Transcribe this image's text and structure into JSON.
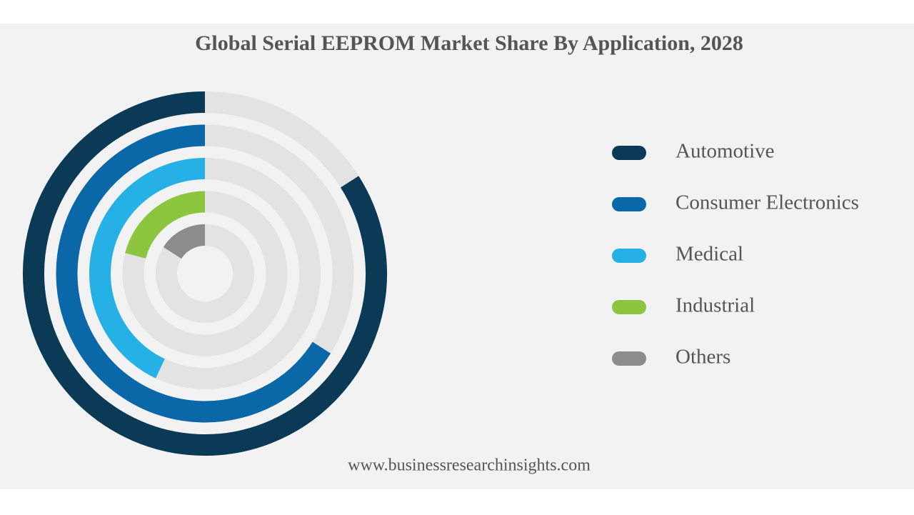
{
  "chart_data": {
    "type": "radial-bar",
    "title": "Global Serial EEPROM Market Share By Application, 2028",
    "source": "www.businessresearchinsights.com",
    "categories": [
      "Automotive",
      "Consumer Electronics",
      "Medical",
      "Industrial",
      "Others"
    ],
    "values": [
      84,
      66,
      43,
      21,
      16
    ],
    "colors": [
      "#0b3a57",
      "#0a68a8",
      "#25b0e6",
      "#8cc63f",
      "#8c8c8c"
    ],
    "rlim": [
      0,
      100
    ]
  }
}
